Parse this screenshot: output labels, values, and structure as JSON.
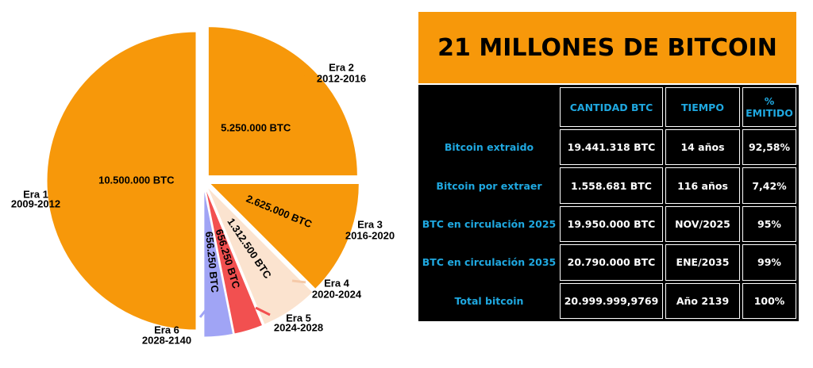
{
  "chart_data": {
    "type": "pie",
    "categories": [
      "Era 1",
      "Era 2",
      "Era 3",
      "Era 4",
      "Era 5",
      "Era 6"
    ],
    "periods": [
      "2009-2012",
      "2012-2016",
      "2016-2020",
      "2020-2024",
      "2024-2028",
      "2028-2140"
    ],
    "values": [
      10500000,
      5250000,
      2625000,
      1312500,
      656250,
      656250
    ],
    "value_labels": [
      "10.500.000 BTC",
      "5.250.000 BTC",
      "2.625.000 BTC",
      "1.312.500 BTC",
      "656.250 BTC",
      "656.250 BTC"
    ],
    "colors": [
      "#f7980a",
      "#f7980a",
      "#f7980a",
      "#fbe3cf",
      "#f25050",
      "#a0a4f5"
    ]
  },
  "table": {
    "title": "21 MILLONES DE BITCOIN",
    "header": [
      "CANTIDAD BTC",
      "TIEMPO",
      "% EMITIDO"
    ],
    "rows": [
      [
        "Bitcoin extraido",
        "19.441.318 BTC",
        "14 años",
        "92,58%"
      ],
      [
        "Bitcoin por extraer",
        "1.558.681 BTC",
        "116 años",
        "7,42%"
      ],
      [
        "BTC en circulación 2025",
        "19.950.000 BTC",
        "NOV/2025",
        "95%"
      ],
      [
        "BTC en circulación 2035",
        "20.790.000 BTC",
        "ENE/2035",
        "99%"
      ],
      [
        "Total bitcoin",
        "20.999.999,9769",
        "Año 2139",
        "100%"
      ]
    ]
  }
}
